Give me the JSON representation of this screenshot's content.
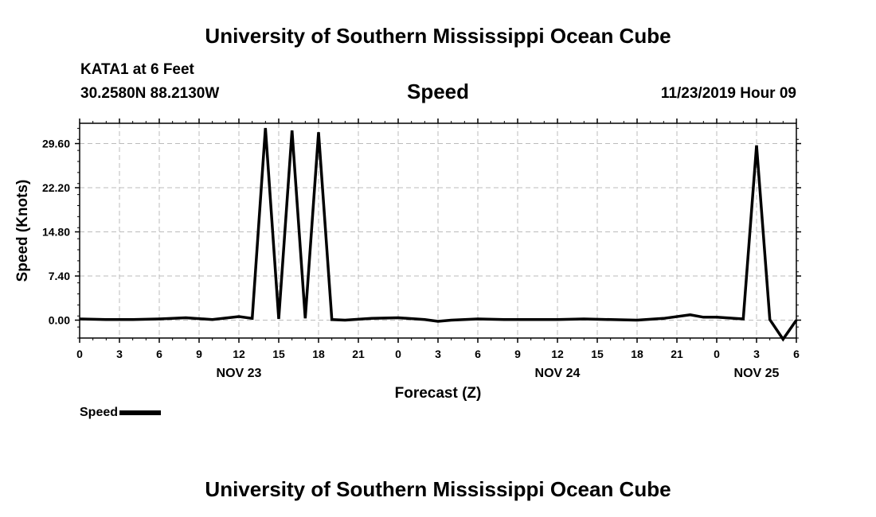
{
  "header": {
    "title": "University of Southern Mississippi Ocean Cube",
    "station": "KATA1 at 6 Feet",
    "coords": "30.2580N 88.2130W",
    "variable": "Speed",
    "datetime": "11/23/2019 Hour 09"
  },
  "footer": {
    "title": "University of Southern Mississippi Ocean Cube"
  },
  "legend": {
    "label": "Speed"
  },
  "chart_data": {
    "type": "line",
    "xlabel": "Forecast (Z)",
    "ylabel": "Speed (Knots)",
    "x_hours_range": [
      0,
      54
    ],
    "ylim": [
      -3,
      33
    ],
    "y_ticks": [
      0.0,
      7.4,
      14.8,
      22.2,
      29.6
    ],
    "y_tick_labels": [
      "0.00",
      "7.40",
      "14.80",
      "22.20",
      "29.60"
    ],
    "x_tick_labels": [
      "0",
      "3",
      "6",
      "9",
      "12",
      "15",
      "18",
      "21",
      "0",
      "3",
      "6",
      "9",
      "12",
      "15",
      "18",
      "21",
      "0",
      "3",
      "6"
    ],
    "date_labels": [
      {
        "label": "NOV 23",
        "hour": 12
      },
      {
        "label": "NOV 24",
        "hour": 36
      },
      {
        "label": "NOV 25",
        "hour": 51
      }
    ],
    "grid": true,
    "series": [
      {
        "name": "Speed",
        "color": "#000000",
        "x": [
          0,
          2,
          4,
          6,
          8,
          10,
          12,
          13,
          14,
          15,
          16,
          17,
          18,
          19,
          20,
          22,
          24,
          26,
          27,
          28,
          30,
          32,
          34,
          36,
          38,
          40,
          42,
          44,
          46,
          47,
          48,
          50,
          51,
          52,
          53,
          54
        ],
        "y": [
          0.2,
          0.1,
          0.1,
          0.2,
          0.4,
          0.1,
          0.6,
          0.3,
          32.2,
          0.2,
          31.8,
          0.3,
          31.5,
          0.1,
          0.0,
          0.3,
          0.4,
          0.1,
          -0.2,
          0.0,
          0.2,
          0.1,
          0.1,
          0.1,
          0.2,
          0.1,
          0.0,
          0.3,
          0.9,
          0.5,
          0.5,
          0.2,
          29.3,
          0.1,
          -3.2,
          0.0
        ]
      }
    ]
  }
}
